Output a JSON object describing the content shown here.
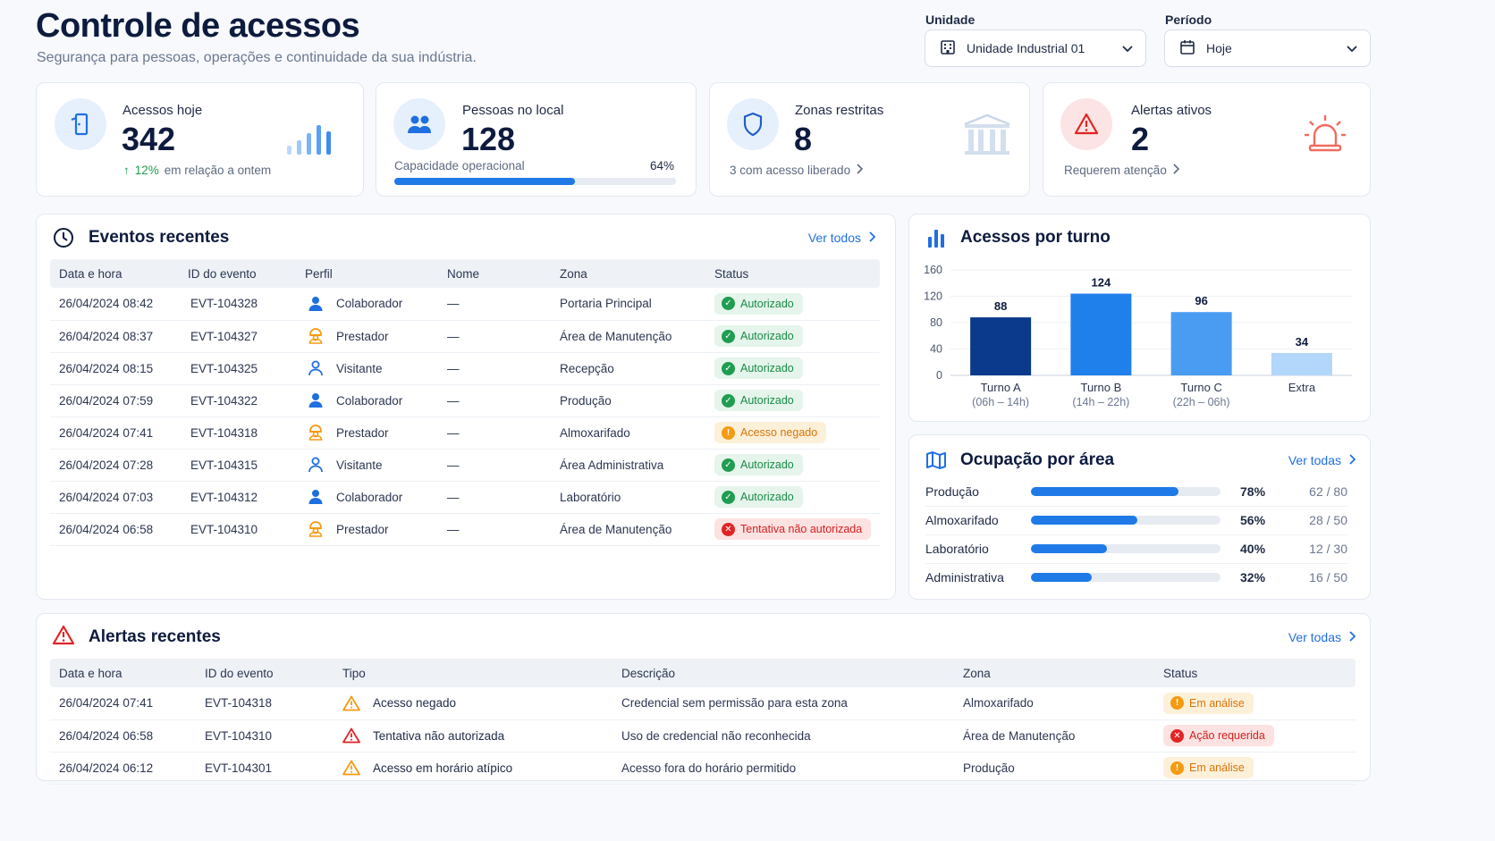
{
  "header": {
    "title": "Controle de acessos",
    "subtitle": "Segurança para pessoas, operações e continuidade da sua indústria.",
    "unit_label": "Unidade",
    "unit_value": "Unidade Industrial 01",
    "period_label": "Período",
    "period_value": "Hoje"
  },
  "kpis": {
    "access": {
      "label": "Acessos hoje",
      "value": "342",
      "delta": "12%",
      "delta_text": "em relação a ontem"
    },
    "people": {
      "label": "Pessoas no local",
      "value": "128",
      "capacity_label": "Capacidade operacional",
      "capacity_percent": "64%",
      "capacity_fraction": 0.64
    },
    "zones": {
      "label": "Zonas restritas",
      "value": "8",
      "foot": "3 com acesso liberado"
    },
    "alerts": {
      "label": "Alertas ativos",
      "value": "2",
      "foot": "Requerem atenção"
    }
  },
  "events": {
    "title": "Eventos recentes",
    "link": "Ver todos",
    "columns": [
      "Data e hora",
      "ID do evento",
      "Perfil",
      "Nome",
      "Zona",
      "Status"
    ],
    "rows": [
      {
        "datetime": "26/04/2024  08:42",
        "id": "EVT-104328",
        "profile": "Colaborador",
        "name": "—",
        "zone": "Portaria Principal",
        "status": "Autorizado",
        "kind": "ok"
      },
      {
        "datetime": "26/04/2024  08:37",
        "id": "EVT-104327",
        "profile": "Prestador",
        "name": "—",
        "zone": "Área de Manutenção",
        "status": "Autorizado",
        "kind": "ok"
      },
      {
        "datetime": "26/04/2024  08:15",
        "id": "EVT-104325",
        "profile": "Visitante",
        "name": "—",
        "zone": "Recepção",
        "status": "Autorizado",
        "kind": "ok"
      },
      {
        "datetime": "26/04/2024  07:59",
        "id": "EVT-104322",
        "profile": "Colaborador",
        "name": "—",
        "zone": "Produção",
        "status": "Autorizado",
        "kind": "ok"
      },
      {
        "datetime": "26/04/2024  07:41",
        "id": "EVT-104318",
        "profile": "Prestador",
        "name": "—",
        "zone": "Almoxarifado",
        "status": "Acesso negado",
        "kind": "warn"
      },
      {
        "datetime": "26/04/2024  07:28",
        "id": "EVT-104315",
        "profile": "Visitante",
        "name": "—",
        "zone": "Área Administrativa",
        "status": "Autorizado",
        "kind": "ok"
      },
      {
        "datetime": "26/04/2024  07:03",
        "id": "EVT-104312",
        "profile": "Colaborador",
        "name": "—",
        "zone": "Laboratório",
        "status": "Autorizado",
        "kind": "ok"
      },
      {
        "datetime": "26/04/2024  06:58",
        "id": "EVT-104310",
        "profile": "Prestador",
        "name": "—",
        "zone": "Área de Manutenção",
        "status": "Tentativa não autorizada",
        "kind": "err"
      }
    ]
  },
  "shift_chart_title": "Acessos por turno",
  "chart_data": {
    "type": "bar",
    "categories": [
      "Turno A",
      "Turno B",
      "Turno C",
      "Extra"
    ],
    "sublabels": [
      "(06h – 14h)",
      "(14h – 22h)",
      "(22h – 06h)",
      ""
    ],
    "values": [
      88,
      124,
      96,
      34
    ],
    "colors": [
      "#0b3a8c",
      "#1f80ec",
      "#4a9cf2",
      "#b3d6fb"
    ],
    "yticks": [
      0,
      40,
      80,
      120,
      160
    ],
    "ylim": [
      0,
      160
    ],
    "title": "Acessos por turno"
  },
  "occupancy": {
    "title": "Ocupação por área",
    "link": "Ver todas",
    "rows": [
      {
        "area": "Produção",
        "fraction": 0.78,
        "percent": "78%",
        "count": "62 / 80"
      },
      {
        "area": "Almoxarifado",
        "fraction": 0.56,
        "percent": "56%",
        "count": "28 / 50"
      },
      {
        "area": "Laboratório",
        "fraction": 0.4,
        "percent": "40%",
        "count": "12 / 30"
      },
      {
        "area": "Administrativa",
        "fraction": 0.32,
        "percent": "32%",
        "count": "16 / 50"
      }
    ]
  },
  "alerts": {
    "title": "Alertas recentes",
    "link": "Ver todas",
    "columns": [
      "Data e hora",
      "ID do evento",
      "Tipo",
      "Descrição",
      "Zona",
      "Status"
    ],
    "rows": [
      {
        "datetime": "26/04/2024  07:41",
        "id": "EVT-104318",
        "type": "Acesso negado",
        "desc": "Credencial sem permissão para esta zona",
        "zone": "Almoxarifado",
        "status": "Em análise",
        "kind": "warn"
      },
      {
        "datetime": "26/04/2024  06:58",
        "id": "EVT-104310",
        "type": "Tentativa não autorizada",
        "desc": "Uso de credencial não reconhecida",
        "zone": "Área de Manutenção",
        "status": "Ação requerida",
        "kind": "err"
      },
      {
        "datetime": "26/04/2024  06:12",
        "id": "EVT-104301",
        "type": "Acesso em horário atípico",
        "desc": "Acesso fora do horário permitido",
        "zone": "Produção",
        "status": "Em análise",
        "kind": "warn"
      }
    ]
  },
  "colors": {
    "accent": "#1f7ae8",
    "navy": "#0d1b3e",
    "ok": "#1f9d50",
    "warn": "#f59a12",
    "err": "#e02424"
  }
}
